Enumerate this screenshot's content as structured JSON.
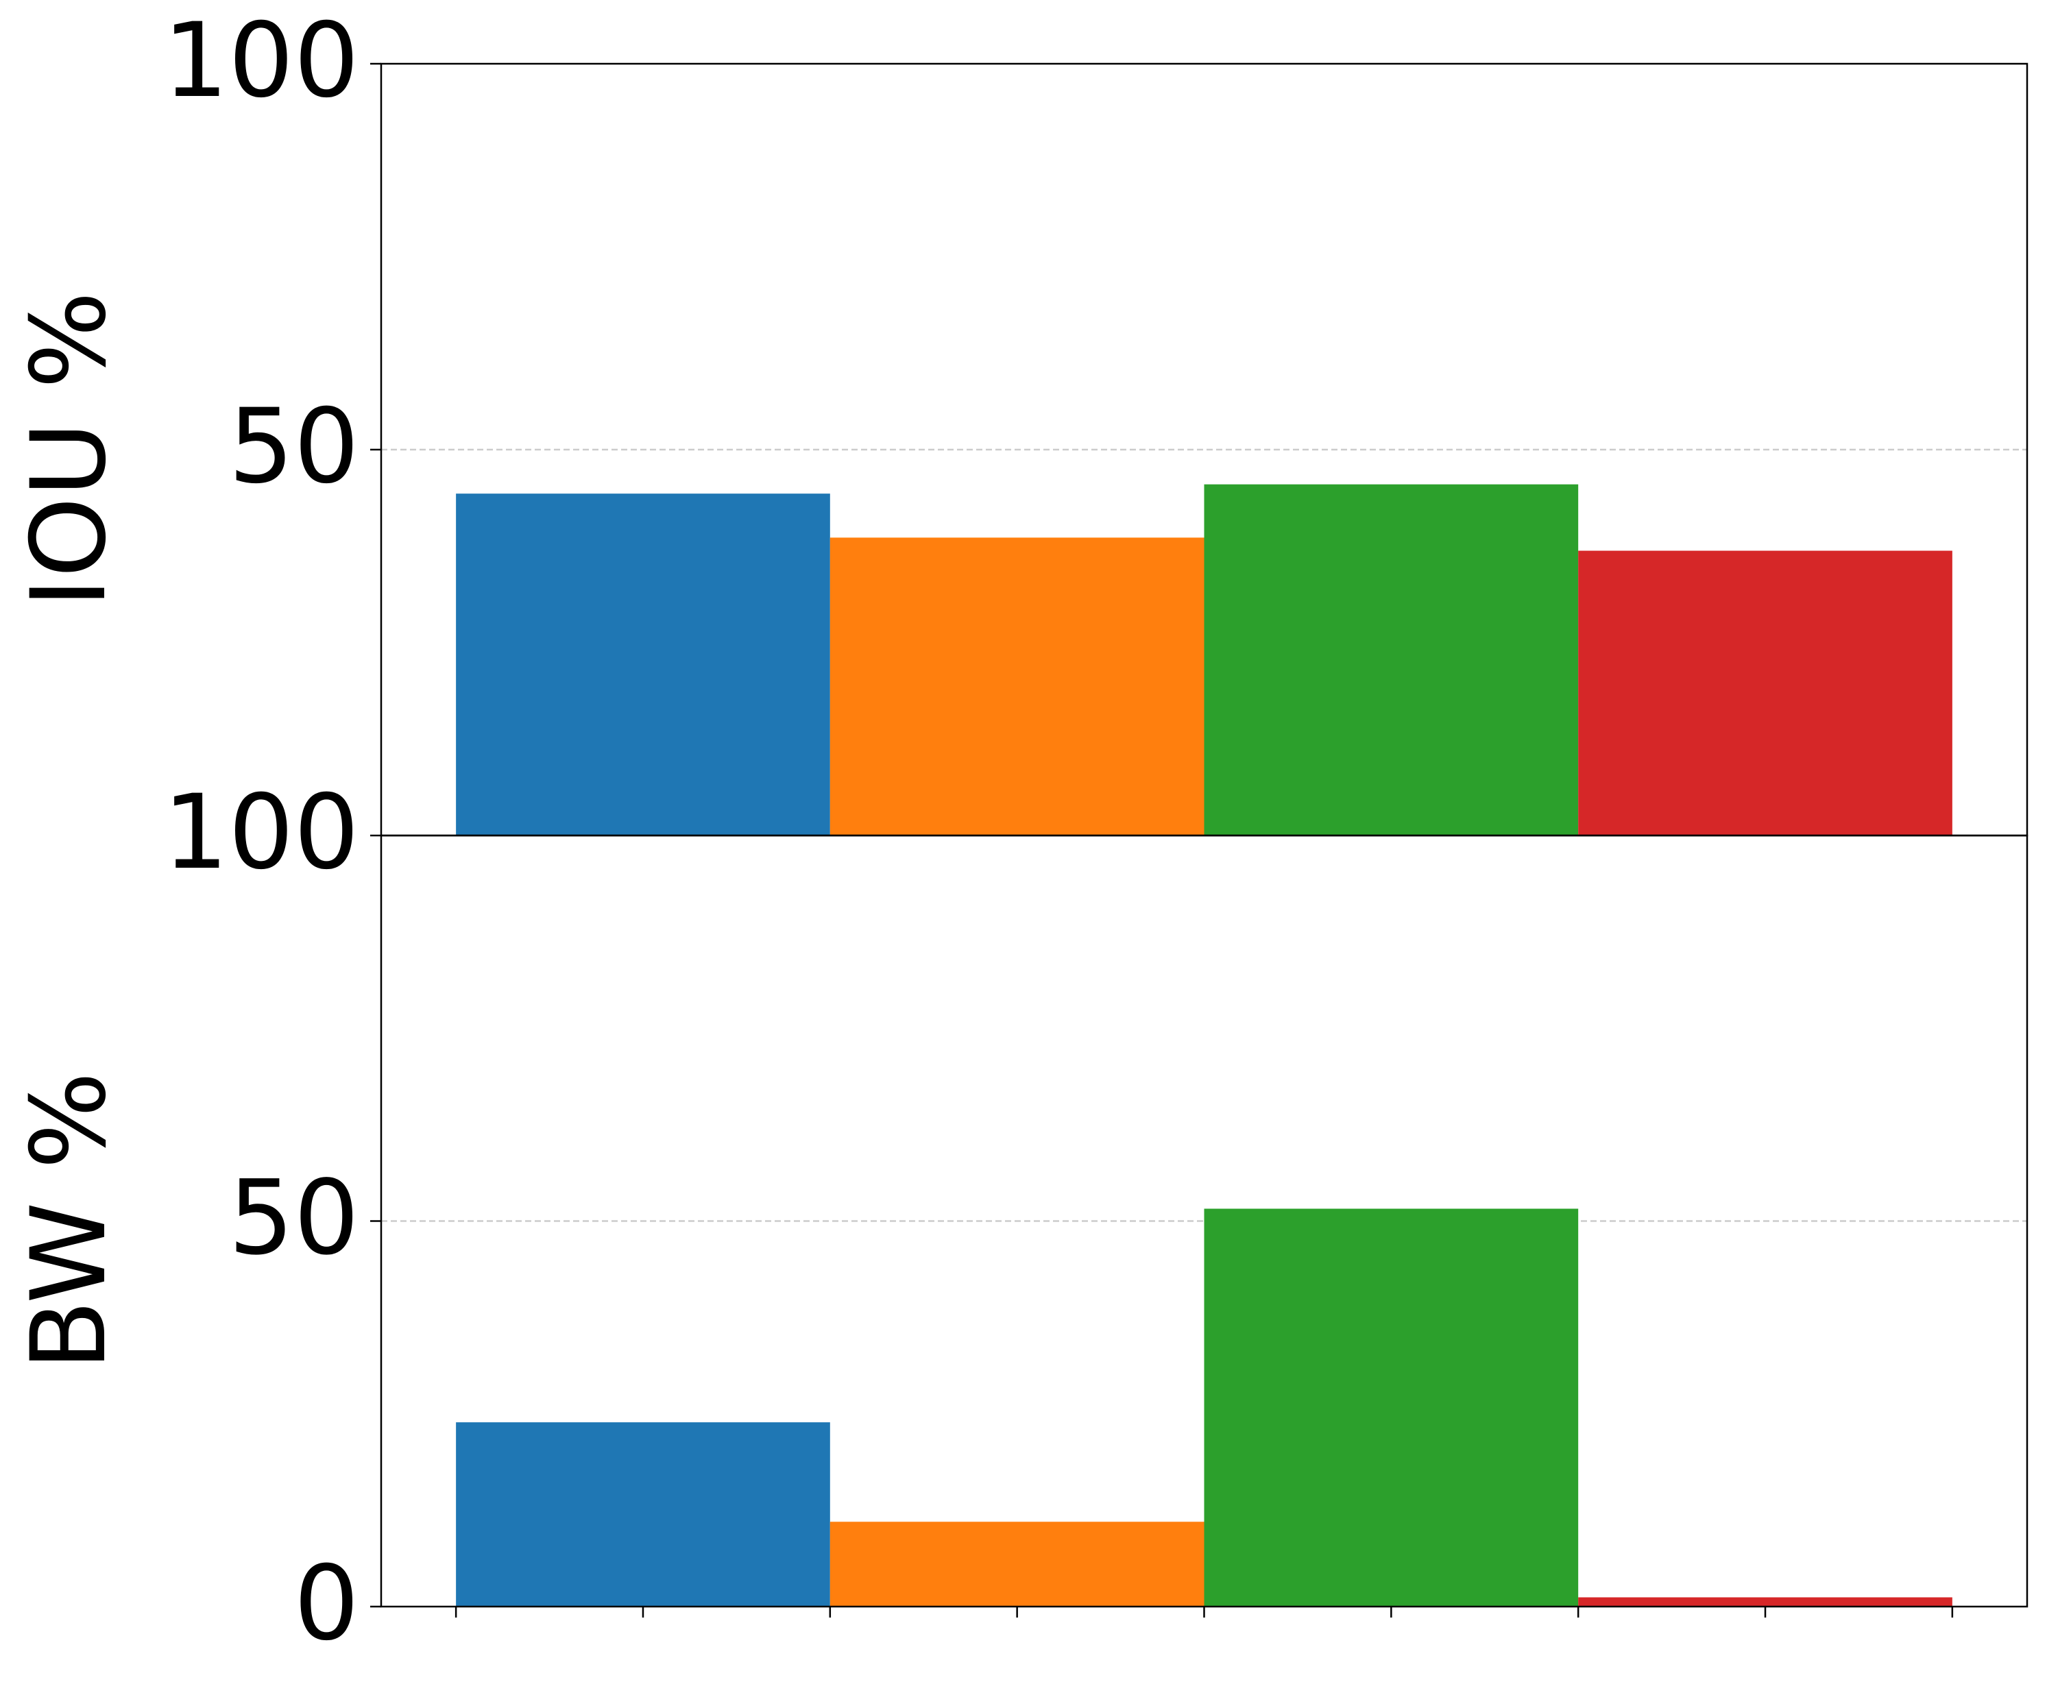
{
  "chart_data": [
    {
      "type": "bar",
      "ylabel": "IOU %",
      "x": [
        0,
        1,
        2,
        3
      ],
      "values": [
        44.3,
        38.6,
        45.5,
        36.9
      ],
      "colors": [
        "#1f77b4",
        "#ff7f0e",
        "#2ca02c",
        "#d62728"
      ],
      "xlim": [
        -0.7,
        3.7
      ],
      "ylim": [
        0,
        100
      ],
      "yticks": [
        50,
        100
      ],
      "grid": true
    },
    {
      "type": "bar",
      "ylabel": "BW %",
      "x": [
        0,
        1,
        2,
        3
      ],
      "values": [
        23.9,
        11.0,
        51.6,
        1.2
      ],
      "colors": [
        "#1f77b4",
        "#ff7f0e",
        "#2ca02c",
        "#d62728"
      ],
      "xlim": [
        -0.7,
        3.7
      ],
      "xticks": [
        -0.5,
        0,
        0.5,
        1,
        1.5,
        2,
        2.5,
        3,
        3.5
      ],
      "ylim": [
        0,
        100
      ],
      "yticks": [
        0,
        50,
        100
      ],
      "grid": true
    }
  ]
}
